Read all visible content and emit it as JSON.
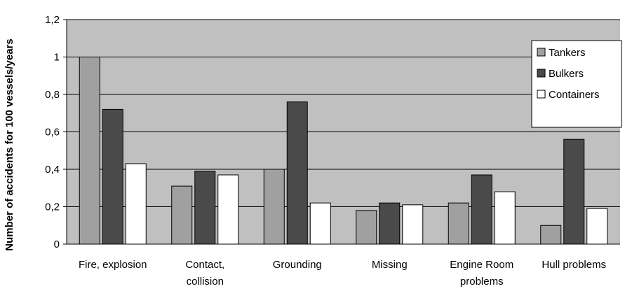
{
  "chart_data": {
    "type": "bar",
    "title": "",
    "xlabel": "",
    "ylabel": "Number of accidents for 100 vessels/years",
    "ylim": [
      0,
      1.2
    ],
    "yticks": [
      "0",
      "0,2",
      "0,4",
      "0,6",
      "0,8",
      "1",
      "1,2"
    ],
    "categories": [
      [
        "Fire, explosion"
      ],
      [
        "Contact,",
        "collision"
      ],
      [
        "Grounding"
      ],
      [
        "Missing"
      ],
      [
        "Engine Room",
        "problems"
      ],
      [
        "Hull problems"
      ]
    ],
    "series": [
      {
        "name": "Tankers",
        "color": "#a0a0a0",
        "values": [
          1.0,
          0.31,
          0.4,
          0.18,
          0.22,
          0.1
        ]
      },
      {
        "name": "Bulkers",
        "color": "#4a4a4a",
        "values": [
          0.72,
          0.39,
          0.76,
          0.22,
          0.37,
          0.56
        ]
      },
      {
        "name": "Containers",
        "color": "#ffffff",
        "values": [
          0.43,
          0.37,
          0.22,
          0.21,
          0.28,
          0.19
        ]
      }
    ],
    "grid": true,
    "plot_background": "#c0c0c0",
    "legend_position": "top-right"
  }
}
